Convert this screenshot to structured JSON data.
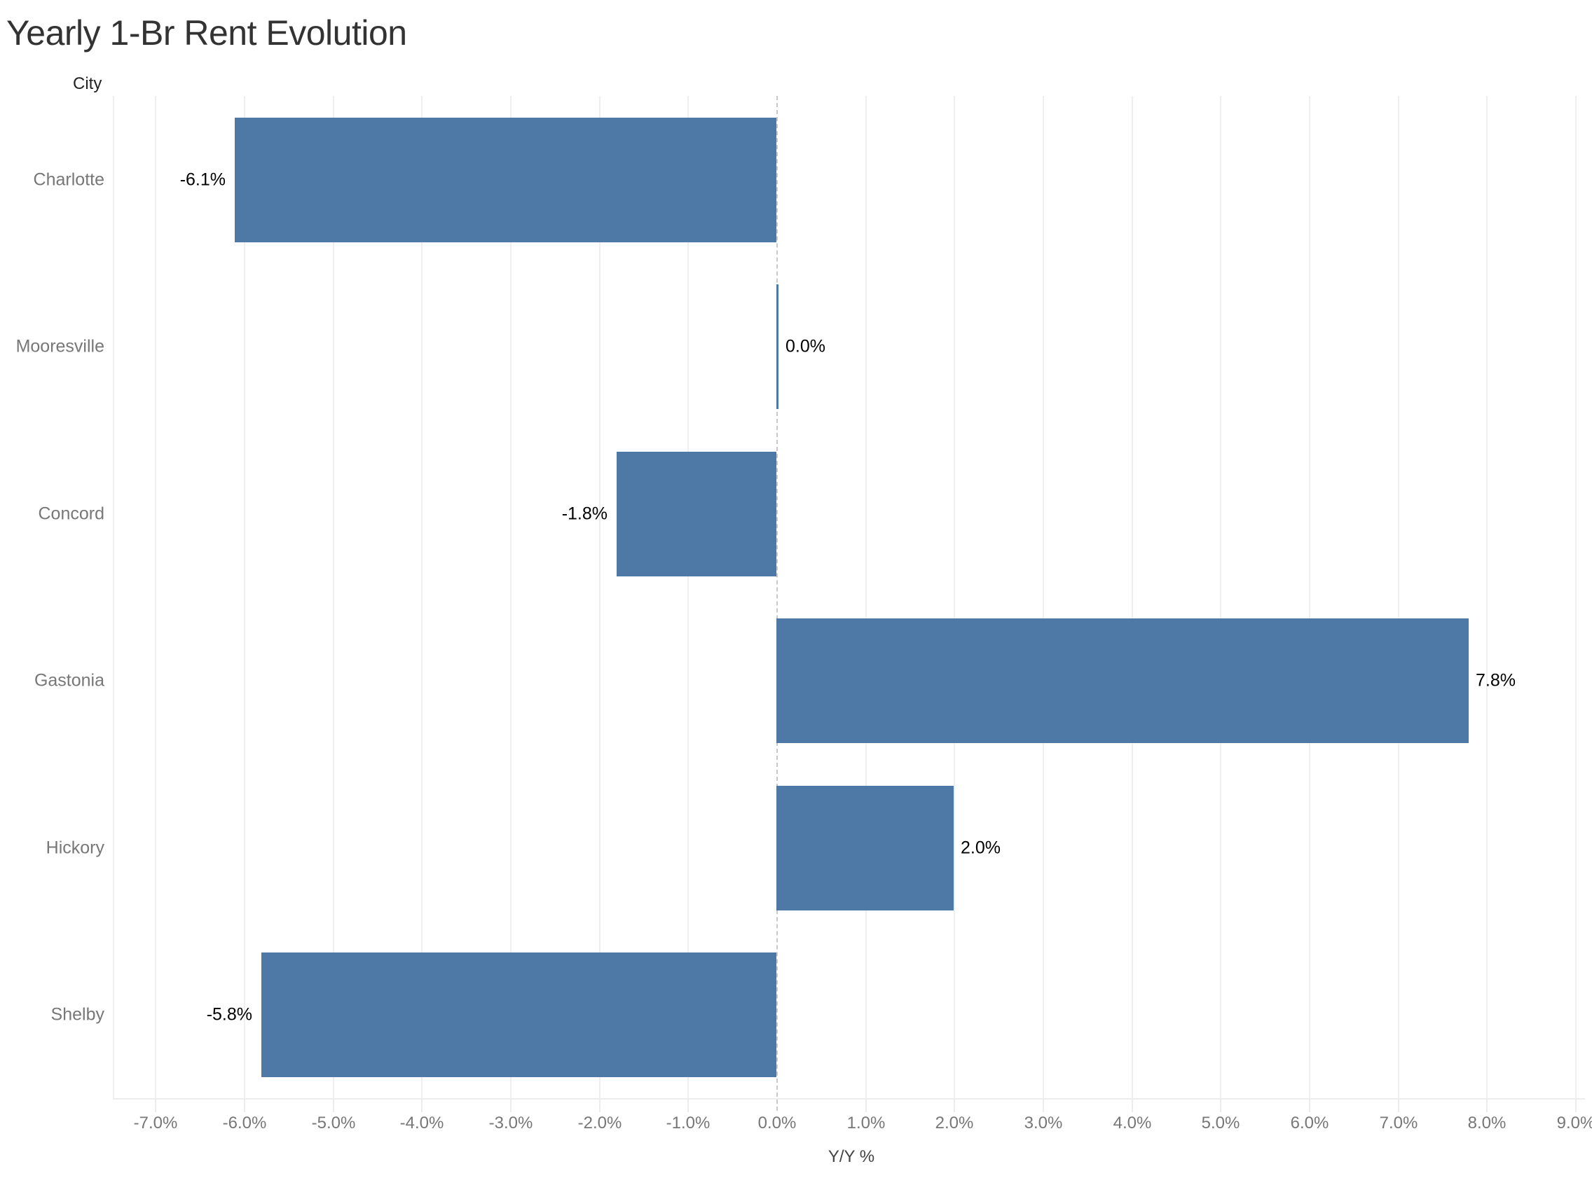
{
  "title": "Yearly 1-Br Rent Evolution",
  "row_header": "City",
  "colors": {
    "bar": "#4e79a7",
    "title": "#333333",
    "axis_text": "#777777",
    "gridline": "#efefef"
  },
  "chart_data": {
    "type": "bar",
    "orientation": "horizontal",
    "title": "Yearly 1-Br Rent Evolution",
    "xlabel": "Y/Y %",
    "ylabel": "City",
    "categories": [
      "Charlotte",
      "Mooresville",
      "Concord",
      "Gastonia",
      "Hickory",
      "Shelby"
    ],
    "values": [
      -6.1,
      0.0,
      -1.8,
      7.8,
      2.0,
      -5.8
    ],
    "value_labels": [
      "-6.1%",
      "0.0%",
      "-1.8%",
      "7.8%",
      "2.0%",
      "-5.8%"
    ],
    "xlim": [
      -7.0,
      9.0
    ],
    "x_ticks": [
      -7,
      -6,
      -5,
      -4,
      -3,
      -2,
      -1,
      0,
      1,
      2,
      3,
      4,
      5,
      6,
      7,
      8,
      9
    ],
    "x_tick_labels": [
      "-7.0%",
      "-6.0%",
      "-5.0%",
      "-4.0%",
      "-3.0%",
      "-2.0%",
      "-1.0%",
      "0.0%",
      "1.0%",
      "2.0%",
      "3.0%",
      "4.0%",
      "5.0%",
      "6.0%",
      "7.0%",
      "8.0%",
      "9.0%"
    ],
    "grid": {
      "vertical": true,
      "horizontal": false
    },
    "legend": null
  }
}
